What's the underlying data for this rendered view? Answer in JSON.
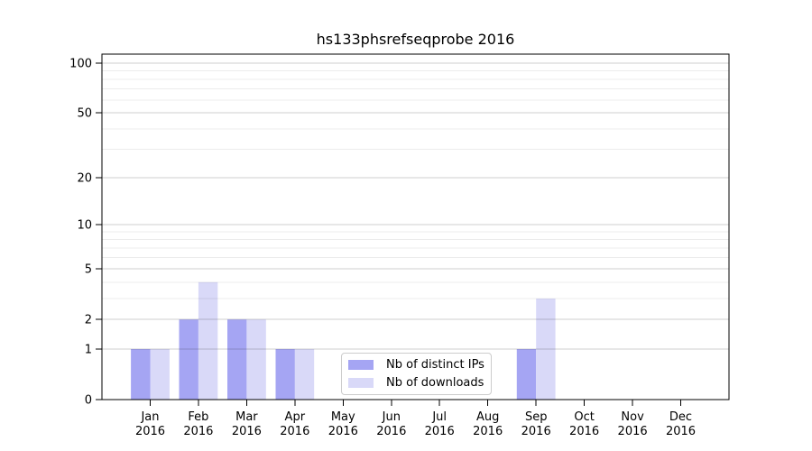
{
  "chart_data": {
    "type": "bar",
    "title": "hs133phsrefseqprobe 2016",
    "categories": [
      "Jan",
      "Feb",
      "Mar",
      "Apr",
      "May",
      "Jun",
      "Jul",
      "Aug",
      "Sep",
      "Oct",
      "Nov",
      "Dec"
    ],
    "category_year": "2016",
    "series": [
      {
        "name": "Nb of distinct IPs",
        "color": "#a5a5f3",
        "values": [
          1,
          2,
          2,
          1,
          0,
          0,
          0,
          0,
          1,
          0,
          0,
          0
        ]
      },
      {
        "name": "Nb of downloads",
        "color": "#d9d9f8",
        "values": [
          1,
          4,
          2,
          1,
          0,
          0,
          0,
          0,
          3,
          0,
          0,
          0
        ]
      }
    ],
    "xlabel": "",
    "ylabel": "",
    "yscale": "log1p",
    "ylim": [
      0,
      113
    ],
    "ytick_values": [
      0,
      1,
      2,
      5,
      10,
      20,
      50,
      100
    ],
    "ytick_minor_values": [
      3,
      4,
      6,
      7,
      8,
      9,
      30,
      40,
      60,
      70,
      80,
      90
    ],
    "grid": "horizontal",
    "legend_position": "lower-center",
    "colors": {
      "axis": "#000000",
      "grid_major": "#cfcfcf",
      "grid_minor": "#ececec",
      "text": "#000000",
      "background": "#ffffff"
    }
  }
}
